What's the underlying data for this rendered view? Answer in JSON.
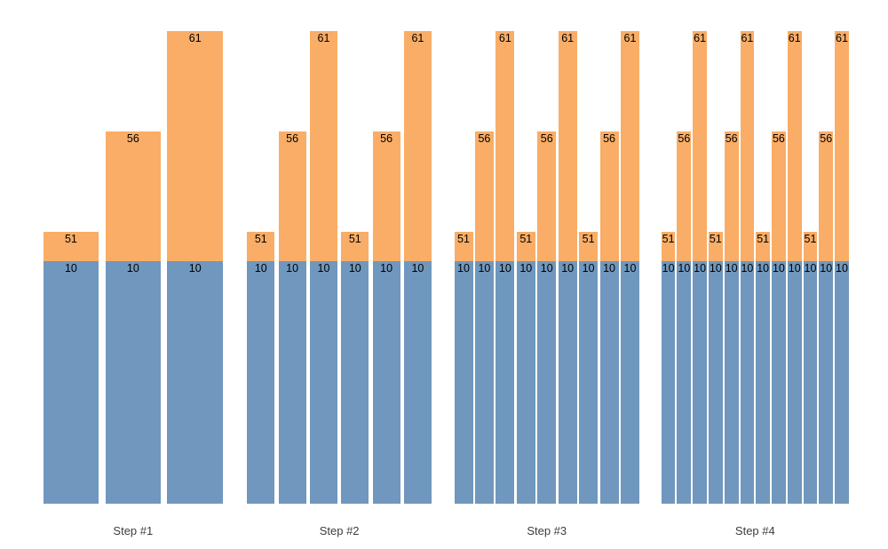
{
  "chart_data": {
    "type": "bar",
    "stacked": true,
    "title": "",
    "axes_visible": false,
    "gridlines": false,
    "legend": "none",
    "colors": {
      "base_segment": "#7097bd",
      "top_segment": "#f9ad66",
      "value_labels": "#000000",
      "step_labels": "#3d3d3d",
      "background": "#ffffff"
    },
    "base_segment": {
      "value": 10,
      "label": "10"
    },
    "groups": [
      {
        "label": "Step #1",
        "bar_totals": [
          51,
          56,
          61
        ]
      },
      {
        "label": "Step #2",
        "bar_totals": [
          51,
          56,
          61,
          51,
          56,
          61
        ]
      },
      {
        "label": "Step #3",
        "bar_totals": [
          51,
          56,
          61,
          51,
          56,
          61,
          51,
          56,
          61
        ]
      },
      {
        "label": "Step #4",
        "bar_totals": [
          51,
          56,
          61,
          51,
          56,
          61,
          51,
          56,
          61,
          51,
          56,
          61
        ]
      }
    ]
  }
}
